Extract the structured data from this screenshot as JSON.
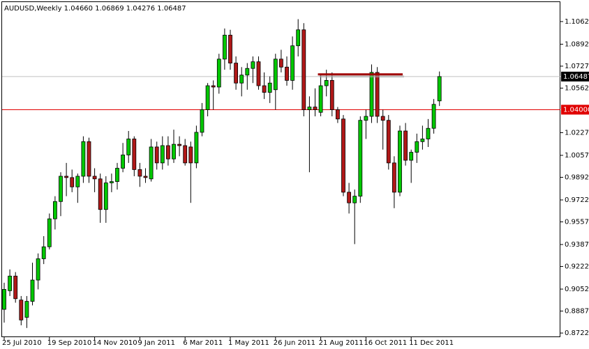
{
  "chart_data": {
    "type": "candlestick",
    "title": "AUDUSD,Weekly  1.04660 1.06869 1.04276 1.06487",
    "categories": [
      "25 Jul 2010",
      null,
      null,
      null,
      null,
      null,
      null,
      null,
      "19 Sep 2010",
      null,
      null,
      null,
      null,
      null,
      null,
      null,
      "14 Nov 2010",
      null,
      null,
      null,
      null,
      null,
      null,
      null,
      "9 Jan 2011",
      null,
      null,
      null,
      null,
      null,
      null,
      null,
      "6 Mar 2011",
      null,
      null,
      null,
      null,
      null,
      null,
      null,
      "1 May 2011",
      null,
      null,
      null,
      null,
      null,
      null,
      null,
      "26 Jun 2011",
      null,
      null,
      null,
      null,
      null,
      null,
      null,
      "21 Aug 2011",
      null,
      null,
      null,
      null,
      null,
      null,
      null,
      "16 Oct 2011",
      null,
      null,
      null,
      null,
      null,
      null,
      null,
      "11 Dec 2011",
      null,
      null,
      null,
      null,
      null
    ],
    "ohlc": {
      "open": [
        0.89,
        0.904,
        0.915,
        0.897,
        0.884,
        0.896,
        0.912,
        0.928,
        0.937,
        0.958,
        0.971,
        0.99,
        0.989,
        0.982,
        0.99,
        1.016,
        0.99,
        0.988,
        0.965,
        0.985,
        0.986,
        0.996,
        1.006,
        1.018,
        0.995,
        0.99,
        0.988,
        1.012,
        1.0,
        1.013,
        1.003,
        1.014,
        1.013,
        1.012,
        1.0,
        1.023,
        1.04,
        1.058,
        1.057,
        1.078,
        1.096,
        1.075,
        1.06,
        1.066,
        1.071,
        1.076,
        1.058,
        1.053,
        1.055,
        1.078,
        1.072,
        1.062,
        1.088,
        1.1,
        1.04,
        1.042,
        1.038,
        1.058,
        1.062,
        1.04,
        1.033,
        0.978,
        0.97,
        0.975,
        1.032,
        1.035,
        1.068,
        1.035,
        1.032,
        1.0,
        0.978,
        1.024,
        1.002,
        1.008,
        1.016,
        1.018,
        1.026,
        1.0466
      ],
      "high": [
        0.91,
        0.92,
        0.918,
        0.9,
        0.9,
        0.925,
        0.932,
        0.945,
        0.962,
        0.975,
        0.993,
        1.0,
        0.995,
        0.992,
        1.02,
        1.019,
        0.996,
        0.992,
        0.99,
        0.992,
        1.0,
        1.015,
        1.024,
        1.02,
        1.0,
        0.996,
        1.018,
        1.016,
        1.02,
        1.02,
        1.025,
        1.02,
        1.018,
        1.016,
        1.028,
        1.045,
        1.06,
        1.062,
        1.082,
        1.101,
        1.1,
        1.08,
        1.072,
        1.075,
        1.08,
        1.08,
        1.068,
        1.065,
        1.082,
        1.085,
        1.08,
        1.095,
        1.108,
        1.105,
        1.05,
        1.056,
        1.066,
        1.07,
        1.068,
        1.042,
        1.036,
        0.985,
        0.98,
        1.035,
        1.04,
        1.074,
        1.072,
        1.04,
        1.036,
        1.005,
        1.028,
        1.03,
        1.01,
        1.022,
        1.028,
        1.033,
        1.048,
        1.06869
      ],
      "low": [
        0.88,
        0.9,
        0.895,
        0.878,
        0.876,
        0.893,
        0.905,
        0.924,
        0.935,
        0.95,
        0.96,
        0.975,
        0.978,
        0.97,
        0.985,
        0.985,
        0.978,
        0.955,
        0.955,
        0.978,
        0.98,
        0.993,
        1.0,
        0.99,
        0.982,
        0.985,
        0.986,
        0.995,
        0.995,
        0.998,
        1.0,
        1.005,
        0.998,
        0.97,
        0.996,
        1.02,
        1.035,
        1.04,
        1.052,
        1.07,
        1.07,
        1.055,
        1.05,
        1.055,
        1.06,
        1.055,
        1.048,
        1.045,
        1.04,
        1.068,
        1.058,
        1.055,
        1.08,
        1.035,
        0.993,
        1.035,
        1.035,
        1.05,
        1.035,
        1.03,
        0.975,
        0.962,
        0.939,
        0.97,
        1.018,
        1.03,
        1.03,
        1.01,
        0.995,
        0.966,
        0.975,
        0.998,
        0.985,
        1.0,
        1.01,
        1.012,
        1.022,
        1.04276
      ],
      "close": [
        0.905,
        0.915,
        0.898,
        0.882,
        0.896,
        0.912,
        0.928,
        0.937,
        0.958,
        0.971,
        0.99,
        0.989,
        0.982,
        0.99,
        1.016,
        0.99,
        0.988,
        0.965,
        0.985,
        0.986,
        0.996,
        1.006,
        1.018,
        0.995,
        0.99,
        0.989,
        1.012,
        1.0,
        1.013,
        1.003,
        1.014,
        1.013,
        1.0,
        1.0,
        1.023,
        1.04,
        1.058,
        1.057,
        1.078,
        1.096,
        1.075,
        1.06,
        1.066,
        1.071,
        1.076,
        1.058,
        1.053,
        1.06,
        1.078,
        1.072,
        1.062,
        1.088,
        1.1,
        1.04,
        1.042,
        1.04,
        1.058,
        1.062,
        1.04,
        1.033,
        0.978,
        0.97,
        0.975,
        1.032,
        1.035,
        1.068,
        1.035,
        1.032,
        1.0,
        0.978,
        1.024,
        1.002,
        1.008,
        1.016,
        1.018,
        1.026,
        1.044,
        1.06487
      ]
    },
    "colors": {
      "up": "#00c800",
      "down": "#b01818"
    },
    "ylim": [
      0.8691,
      1.1203
    ],
    "yticks": [
      {
        "value": 1.1062,
        "label": "1.10620"
      },
      {
        "value": 1.0892,
        "label": "1.08920"
      },
      {
        "value": 1.0727,
        "label": "1.07270"
      },
      {
        "value": 1.0562,
        "label": "1.05620"
      },
      {
        "value": 1.0227,
        "label": "1.02270"
      },
      {
        "value": 1.0057,
        "label": "1.00570"
      },
      {
        "value": 0.9892,
        "label": "0.98920"
      },
      {
        "value": 0.9722,
        "label": "0.97220"
      },
      {
        "value": 0.9557,
        "label": "0.95570"
      },
      {
        "value": 0.9387,
        "label": "0.93870"
      },
      {
        "value": 0.9222,
        "label": "0.92220"
      },
      {
        "value": 0.9052,
        "label": "0.90520"
      },
      {
        "value": 0.8887,
        "label": "0.88870"
      },
      {
        "value": 0.8722,
        "label": "0.87220"
      }
    ],
    "current_price": {
      "value": 1.06487,
      "label": "1.06487",
      "color": "#c0c0c0"
    },
    "hline": {
      "value": 1.04,
      "label": "1.04000",
      "color": "#e00000"
    },
    "level_line": {
      "value": 1.0665,
      "from": 55.5,
      "to": 70.5,
      "color": "#a00000"
    }
  }
}
